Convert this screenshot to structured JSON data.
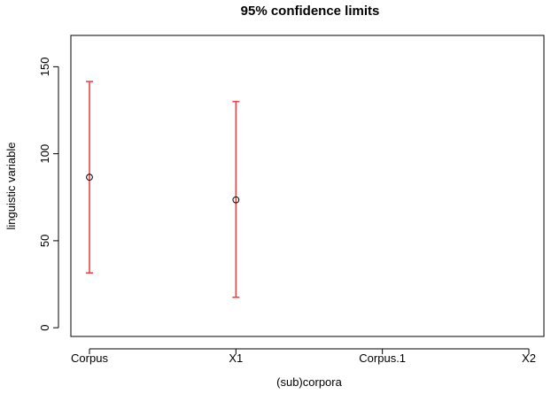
{
  "chart_data": {
    "type": "scatter",
    "title": "95% confidence limits",
    "xlabel": "(sub)corpora",
    "ylabel": "linguistic variable",
    "categories": [
      "Corpus",
      "X1",
      "Corpus.1",
      "X2"
    ],
    "yticks": [
      "0",
      "50",
      "100",
      "150"
    ],
    "ylim": [
      -5,
      168
    ],
    "grid": false,
    "points": [
      {
        "category": "Corpus",
        "mean": 86.5,
        "lower": 31.5,
        "upper": 141.5
      },
      {
        "category": "X1",
        "mean": 73.5,
        "lower": 17.5,
        "upper": 130.0
      }
    ],
    "errorbar_color": "#e8474a",
    "marker_color": "#000000"
  }
}
